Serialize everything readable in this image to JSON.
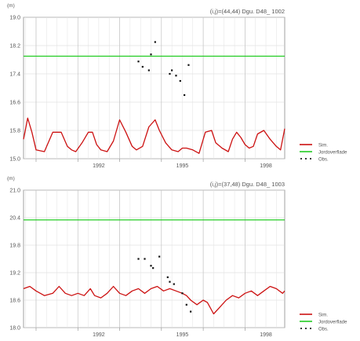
{
  "chart_data": [
    {
      "type": "line",
      "unit": "(m)",
      "title": "(i,j)=(44,44) Dgu. D48_ 1002",
      "ylim": [
        15.0,
        19.0
      ],
      "yticks": [
        "15.0",
        "15.8",
        "16.6",
        "17.4",
        "18.2",
        "19.0"
      ],
      "ytick_values": [
        15.0,
        15.8,
        16.6,
        17.4,
        18.2,
        19.0
      ],
      "xlim": [
        1990.7,
        1996.95
      ],
      "xticks": [
        "1992",
        "1995",
        "1998"
      ],
      "xtick_values": [
        1992.5,
        1994.5,
        1996.5
      ],
      "grid": true,
      "legend_position": "right",
      "legend": [
        "Sim.",
        "Jordoverflade",
        "Obs."
      ],
      "series": [
        {
          "name": "Sim.",
          "color": "#cc1111",
          "x": [
            1990.7,
            1990.8,
            1990.9,
            1991.0,
            1991.2,
            1991.4,
            1991.6,
            1991.75,
            1991.85,
            1991.95,
            1992.1,
            1992.25,
            1992.35,
            1992.45,
            1992.55,
            1992.7,
            1992.85,
            1993.0,
            1993.15,
            1993.3,
            1993.4,
            1993.55,
            1993.7,
            1993.85,
            1993.95,
            1994.1,
            1994.25,
            1994.4,
            1994.5,
            1994.6,
            1994.75,
            1994.9,
            1995.05,
            1995.2,
            1995.3,
            1995.45,
            1995.6,
            1995.7,
            1995.8,
            1995.9,
            1996.0,
            1996.1,
            1996.2,
            1996.3,
            1996.45,
            1996.6,
            1996.75,
            1996.85,
            1996.95
          ],
          "y": [
            15.55,
            16.15,
            15.75,
            15.25,
            15.2,
            15.75,
            15.75,
            15.35,
            15.25,
            15.2,
            15.45,
            15.75,
            15.75,
            15.4,
            15.25,
            15.2,
            15.5,
            16.1,
            15.75,
            15.35,
            15.25,
            15.35,
            15.9,
            16.1,
            15.8,
            15.45,
            15.25,
            15.2,
            15.3,
            15.3,
            15.25,
            15.15,
            15.75,
            15.8,
            15.45,
            15.3,
            15.2,
            15.55,
            15.75,
            15.6,
            15.4,
            15.3,
            15.35,
            15.7,
            15.8,
            15.55,
            15.35,
            15.25,
            15.85
          ]
        },
        {
          "name": "Jordoverflade",
          "color": "#22cc22",
          "x": [
            1990.7,
            1996.95
          ],
          "y": [
            17.9,
            17.9
          ]
        },
        {
          "name": "Obs.",
          "color": "#111111",
          "x": [
            1993.45,
            1993.55,
            1993.7,
            1993.75,
            1993.85,
            1994.2,
            1994.25,
            1994.35,
            1994.45,
            1994.55,
            1994.65
          ],
          "y": [
            17.75,
            17.6,
            17.5,
            17.95,
            18.3,
            17.4,
            17.5,
            17.35,
            17.2,
            16.8,
            17.65
          ]
        }
      ]
    },
    {
      "type": "line",
      "unit": "(m)",
      "title": "(i,j)=(37,48) Dgu. D48_ 1003",
      "ylim": [
        18.0,
        21.0
      ],
      "yticks": [
        "18.0",
        "18.6",
        "19.2",
        "19.8",
        "20.4",
        "21.0"
      ],
      "ytick_values": [
        18.0,
        18.6,
        19.2,
        19.8,
        20.4,
        21.0
      ],
      "xlim": [
        1990.7,
        1996.95
      ],
      "xticks": [
        "1992",
        "1995",
        "1998"
      ],
      "xtick_values": [
        1992.5,
        1994.5,
        1996.5
      ],
      "grid": true,
      "legend_position": "right",
      "legend": [
        "Sim.",
        "Jordoverflade",
        "Obs."
      ],
      "series": [
        {
          "name": "Sim.",
          "color": "#cc1111",
          "x": [
            1990.7,
            1990.85,
            1991.0,
            1991.2,
            1991.4,
            1991.55,
            1991.7,
            1991.85,
            1992.0,
            1992.15,
            1992.3,
            1992.4,
            1992.55,
            1992.7,
            1992.85,
            1993.0,
            1993.15,
            1993.3,
            1993.45,
            1993.6,
            1993.75,
            1993.9,
            1994.05,
            1994.2,
            1994.35,
            1994.5,
            1994.6,
            1994.7,
            1994.85,
            1995.0,
            1995.1,
            1995.25,
            1995.4,
            1995.55,
            1995.7,
            1995.85,
            1996.0,
            1996.15,
            1996.3,
            1996.45,
            1996.6,
            1996.75,
            1996.9,
            1996.95
          ],
          "y": [
            18.85,
            18.9,
            18.8,
            18.7,
            18.75,
            18.9,
            18.75,
            18.7,
            18.75,
            18.7,
            18.85,
            18.7,
            18.65,
            18.75,
            18.9,
            18.75,
            18.7,
            18.8,
            18.85,
            18.75,
            18.85,
            18.9,
            18.8,
            18.85,
            18.8,
            18.75,
            18.7,
            18.6,
            18.5,
            18.6,
            18.55,
            18.3,
            18.45,
            18.6,
            18.7,
            18.65,
            18.75,
            18.8,
            18.7,
            18.8,
            18.9,
            18.85,
            18.75,
            18.8
          ]
        },
        {
          "name": "Jordoverflade",
          "color": "#22cc22",
          "x": [
            1990.7,
            1996.95
          ],
          "y": [
            20.35,
            20.35
          ]
        },
        {
          "name": "Obs.",
          "color": "#111111",
          "x": [
            1993.45,
            1993.6,
            1993.75,
            1993.8,
            1993.95,
            1994.15,
            1994.2,
            1994.3,
            1994.5,
            1994.6,
            1994.7
          ],
          "y": [
            19.5,
            19.5,
            19.35,
            19.3,
            19.55,
            19.1,
            19.0,
            18.95,
            18.75,
            18.5,
            18.35
          ]
        }
      ]
    }
  ]
}
